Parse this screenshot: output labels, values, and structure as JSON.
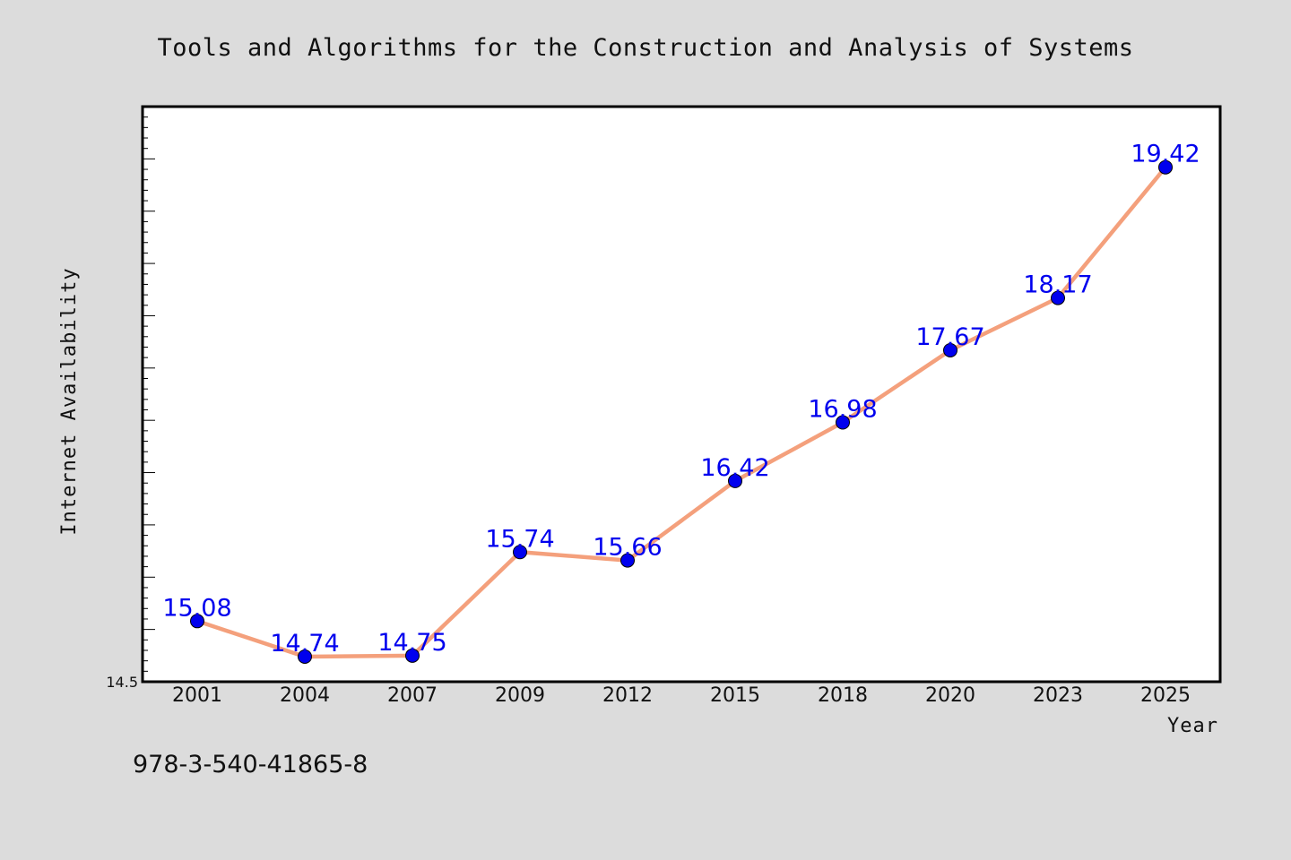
{
  "chart_data": {
    "type": "line",
    "title": "Tools and Algorithms for the Construction and Analysis of Systems",
    "xlabel": "Year",
    "ylabel": "Internet Availability",
    "categories": [
      "2001",
      "2004",
      "2007",
      "2009",
      "2012",
      "2015",
      "2018",
      "2020",
      "2023",
      "2025"
    ],
    "series": [
      {
        "values": [
          15.08,
          14.74,
          14.75,
          15.74,
          15.66,
          16.42,
          16.98,
          17.67,
          18.17,
          19.42
        ],
        "labels": [
          "15.08",
          "14.74",
          "14.75",
          "15.74",
          "15.66",
          "16.42",
          "16.98",
          "17.67",
          "18.17",
          "19.42"
        ],
        "line_color": "#f4a07c",
        "marker_color": "#0000ee"
      }
    ],
    "ylim": [
      14.5,
      20.0
    ],
    "y_min_label": "14.5",
    "grid": false,
    "legend": "none"
  },
  "footnote": "978-3-540-41865-8"
}
